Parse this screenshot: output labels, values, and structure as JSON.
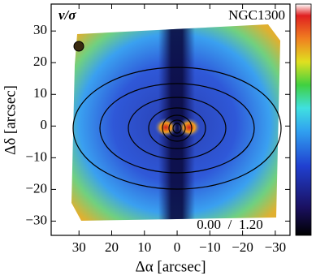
{
  "chart_data": {
    "type": "map",
    "title": "NGC1300",
    "quantity": "v/σ",
    "xlabel": "Δα [arcsec]",
    "ylabel": "Δδ [arcsec]",
    "xlim": [
      38.5,
      -34.5
    ],
    "ylim": [
      -34.5,
      38.5
    ],
    "xticks": [
      30,
      20,
      10,
      0,
      {
        "value": -10,
        "label": "−10"
      },
      {
        "value": -20,
        "label": "−20"
      },
      {
        "value": -30,
        "label": "−30"
      }
    ],
    "yticks": [
      {
        "value": -30,
        "label": "−30"
      },
      {
        "value": -20,
        "label": "−20"
      },
      {
        "value": -10,
        "label": "−10"
      },
      0,
      10,
      20,
      30
    ],
    "clim": [
      {
        "value": 0,
        "label": "0.00"
      },
      {
        "value": 1.2,
        "label": "1.20"
      }
    ],
    "clim_separator": "/"
  }
}
